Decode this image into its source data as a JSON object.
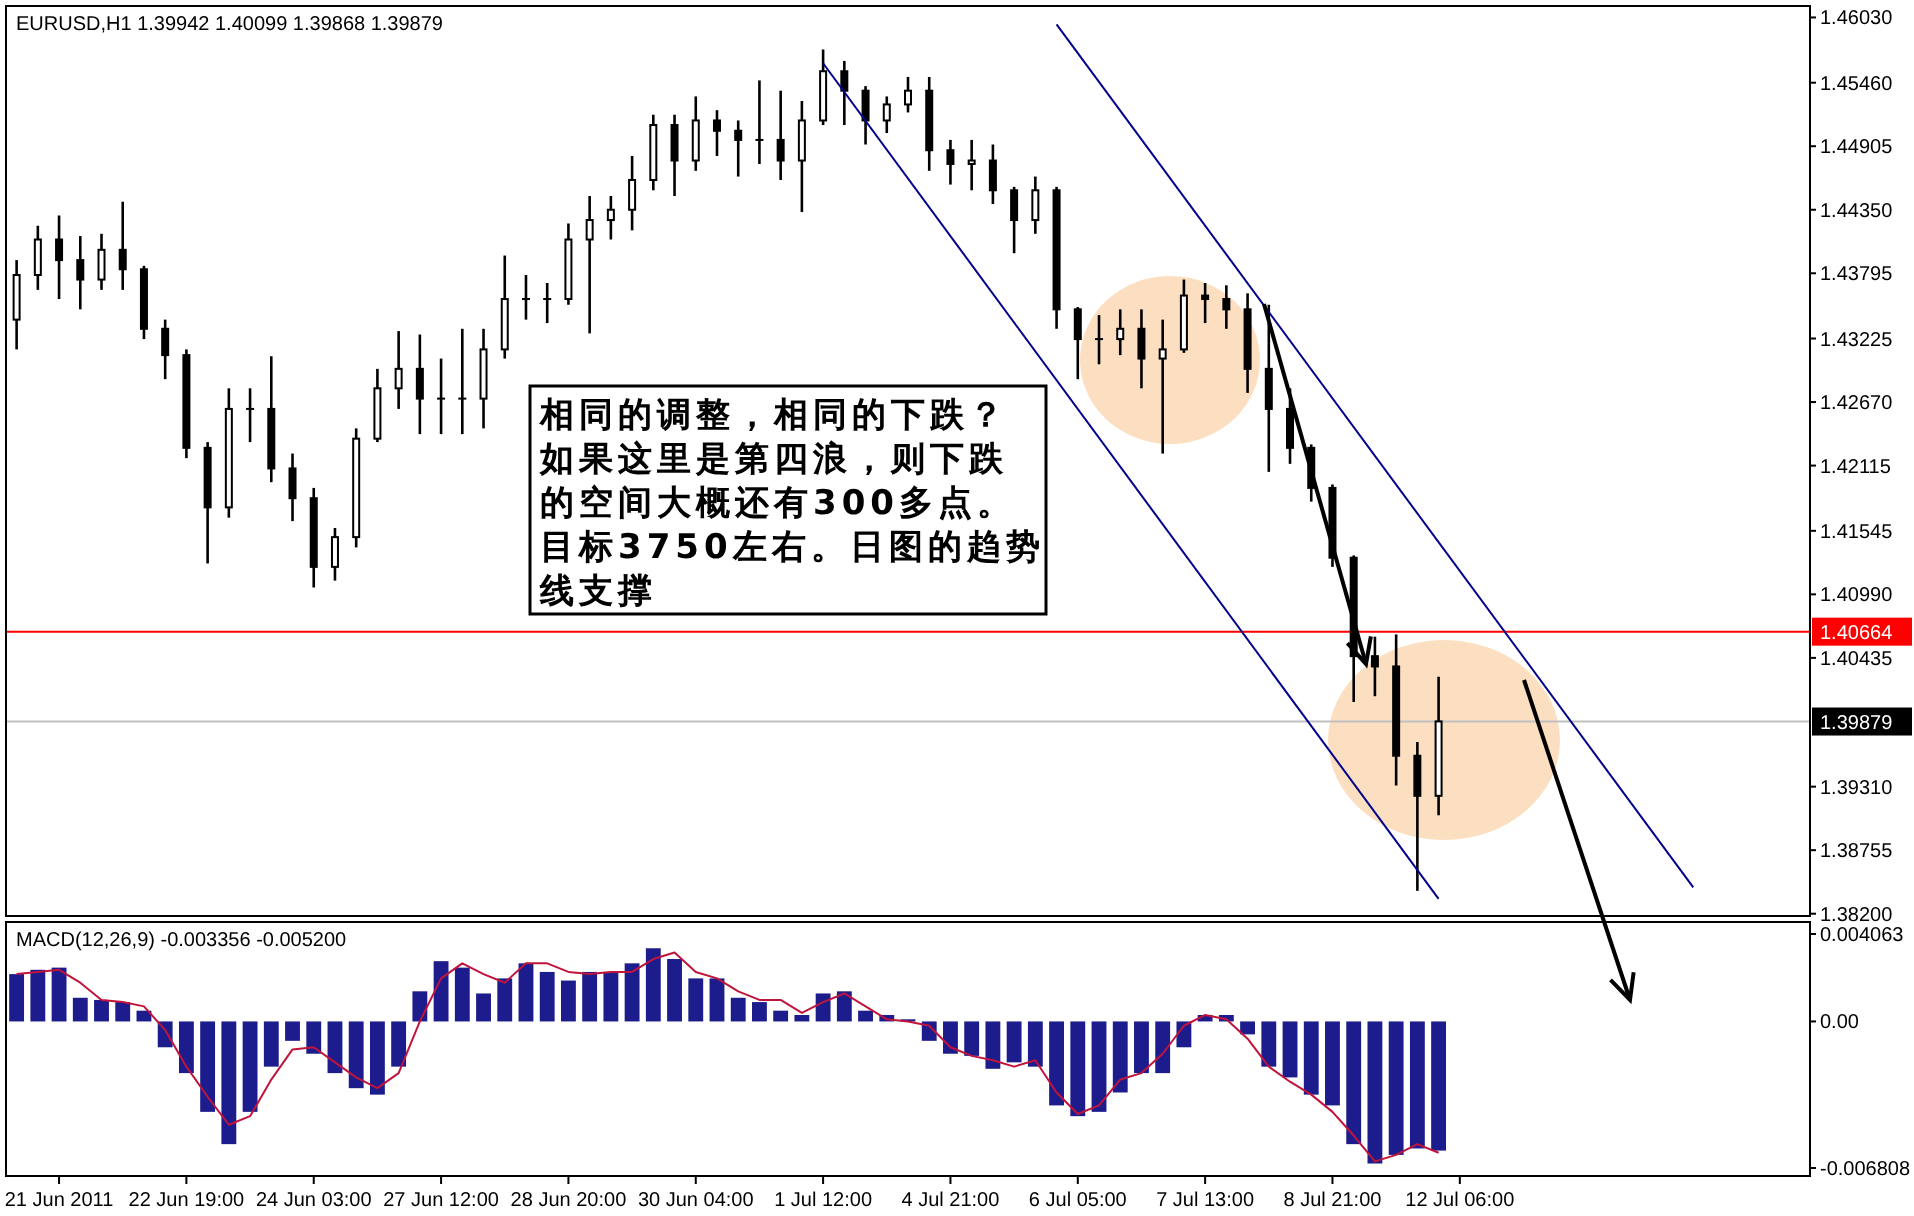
{
  "chart_data": [
    {
      "type": "candlestick",
      "title": "EURUSD,H1  1.39942 1.40099 1.39868 1.39879",
      "color": "#000000",
      "tick_labels": "y",
      "categories": [
        null,
        null,
        null,
        null,
        null,
        null,
        null,
        null,
        null,
        null,
        null,
        null,
        null,
        null,
        null,
        null,
        null,
        null,
        null,
        null,
        null,
        null,
        null,
        null,
        null,
        null,
        null,
        null,
        null,
        null,
        null,
        null,
        null,
        null,
        null,
        null,
        null,
        null,
        null,
        null,
        null,
        null,
        null,
        null,
        null,
        null,
        null,
        null,
        null,
        null,
        null,
        null,
        null,
        null,
        null,
        null,
        null,
        null,
        null,
        null,
        null,
        null,
        null,
        null,
        null,
        null,
        null,
        null,
        null,
        null,
        null,
        null,
        null,
        null,
        null,
        null,
        null,
        null,
        null,
        null,
        null,
        null,
        null,
        null,
        null
      ],
      "ohlc": [
        [
          1.4339,
          1.4391,
          1.4313,
          1.4378
        ],
        [
          1.4378,
          1.4421,
          1.4365,
          1.4409
        ],
        [
          1.4409,
          1.443,
          1.4357,
          1.4391
        ],
        [
          1.4391,
          1.4412,
          1.4348,
          1.4374
        ],
        [
          1.4374,
          1.4414,
          1.4365,
          1.44
        ],
        [
          1.44,
          1.4442,
          1.4365,
          1.4383
        ],
        [
          1.4383,
          1.4386,
          1.4322,
          1.4331
        ],
        [
          1.4331,
          1.4339,
          1.4287,
          1.4308
        ],
        [
          1.4308,
          1.4313,
          1.4218,
          1.4227
        ],
        [
          1.4227,
          1.4232,
          1.4126,
          1.4175
        ],
        [
          1.4175,
          1.4279,
          1.4166,
          1.4261
        ],
        [
          1.4261,
          1.4279,
          1.4232,
          1.4261
        ],
        [
          1.4261,
          1.4307,
          1.4197,
          1.4209
        ],
        [
          1.4209,
          1.4222,
          1.4163,
          1.4183
        ],
        [
          1.4183,
          1.4192,
          1.4105,
          1.4123
        ],
        [
          1.4123,
          1.4157,
          1.4111,
          1.4149
        ],
        [
          1.4149,
          1.4244,
          1.414,
          1.4235
        ],
        [
          1.4235,
          1.4296,
          1.4232,
          1.4279
        ],
        [
          1.4279,
          1.4329,
          1.4261,
          1.4296
        ],
        [
          1.4296,
          1.4326,
          1.4239,
          1.427
        ],
        [
          1.427,
          1.4305,
          1.4239,
          1.427
        ],
        [
          1.427,
          1.4331,
          1.4239,
          1.427
        ],
        [
          1.427,
          1.4331,
          1.4244,
          1.4313
        ],
        [
          1.4313,
          1.4395,
          1.4305,
          1.4357
        ],
        [
          1.4357,
          1.4378,
          1.4339,
          1.4357
        ],
        [
          1.4357,
          1.4371,
          1.4336,
          1.4357
        ],
        [
          1.4357,
          1.4423,
          1.4352,
          1.4409
        ],
        [
          1.4409,
          1.4447,
          1.4327,
          1.4426
        ],
        [
          1.4426,
          1.4447,
          1.4409,
          1.4435
        ],
        [
          1.4435,
          1.4482,
          1.4417,
          1.4461
        ],
        [
          1.4461,
          1.4518,
          1.4452,
          1.4509
        ],
        [
          1.4509,
          1.4518,
          1.4447,
          1.4478
        ],
        [
          1.4478,
          1.4534,
          1.4469,
          1.4513
        ],
        [
          1.4513,
          1.4522,
          1.4482,
          1.4504
        ],
        [
          1.4504,
          1.4513,
          1.4464,
          1.4496
        ],
        [
          1.4496,
          1.4548,
          1.4475,
          1.4496
        ],
        [
          1.4496,
          1.4539,
          1.4461,
          1.4478
        ],
        [
          1.4478,
          1.453,
          1.4433,
          1.4513
        ],
        [
          1.4513,
          1.4575,
          1.4509,
          1.4556
        ],
        [
          1.4556,
          1.4565,
          1.4509,
          1.4539
        ],
        [
          1.4539,
          1.4543,
          1.4492,
          1.4513
        ],
        [
          1.4513,
          1.4534,
          1.4502,
          1.4527
        ],
        [
          1.4527,
          1.4551,
          1.452,
          1.4539
        ],
        [
          1.4539,
          1.4551,
          1.4469,
          1.4487
        ],
        [
          1.4487,
          1.4496,
          1.4457,
          1.4475
        ],
        [
          1.4475,
          1.4496,
          1.4452,
          1.4478
        ],
        [
          1.4478,
          1.4492,
          1.444,
          1.4452
        ],
        [
          1.4452,
          1.4455,
          1.4397,
          1.4426
        ],
        [
          1.4426,
          1.4464,
          1.4414,
          1.4452
        ],
        [
          1.4452,
          1.4455,
          1.4331,
          1.4348
        ],
        [
          1.4348,
          1.435,
          1.4287,
          1.4322
        ],
        [
          1.4322,
          1.4343,
          1.43,
          1.4322
        ],
        [
          1.4322,
          1.4348,
          1.4308,
          1.4331
        ],
        [
          1.4331,
          1.4348,
          1.4279,
          1.4305
        ],
        [
          1.4305,
          1.4339,
          1.4222,
          1.4313
        ],
        [
          1.4313,
          1.4374,
          1.431,
          1.436
        ],
        [
          1.436,
          1.4371,
          1.4336,
          1.4357
        ],
        [
          1.4357,
          1.4369,
          1.4331,
          1.4348
        ],
        [
          1.4348,
          1.4362,
          1.4275,
          1.4296
        ],
        [
          1.4296,
          1.4352,
          1.4206,
          1.4261
        ],
        [
          1.4261,
          1.4279,
          1.4213,
          1.4227
        ],
        [
          1.4227,
          1.423,
          1.418,
          1.4192
        ],
        [
          1.4192,
          1.4195,
          1.4123,
          1.4131
        ],
        [
          1.4131,
          1.4133,
          1.4005,
          1.4045
        ],
        [
          1.4045,
          1.4062,
          1.401,
          1.4036
        ],
        [
          1.4036,
          1.4064,
          1.3932,
          1.3958
        ],
        [
          1.3958,
          1.397,
          1.384,
          1.3923
        ],
        [
          1.3923,
          1.4027,
          1.3906,
          1.3988
        ],
        null,
        null,
        null,
        null,
        null,
        null,
        null,
        null,
        null,
        null,
        null,
        null,
        null,
        null,
        null,
        null,
        null
      ],
      "series": [
        {
          "type": "line",
          "color": "#00008b",
          "values": [
            null,
            null,
            null,
            null,
            null,
            null,
            null,
            null,
            null,
            null,
            null,
            null,
            null,
            null,
            null,
            null,
            null,
            null,
            null,
            null,
            null,
            null,
            null,
            null,
            null,
            null,
            null,
            null,
            null,
            null,
            null,
            null,
            null,
            null,
            null,
            null,
            null,
            null,
            1.4563,
            null,
            null,
            null,
            null,
            null,
            null,
            null,
            null,
            null,
            null,
            null,
            null,
            null,
            null,
            null,
            null,
            null,
            null,
            null,
            null,
            null,
            null,
            null,
            null,
            null,
            null,
            null,
            null,
            1.3833,
            null,
            null,
            null,
            null,
            null,
            null,
            null,
            null,
            null,
            null,
            null,
            null,
            null,
            null,
            null,
            null,
            null
          ]
        },
        {
          "type": "line",
          "color": "#00008b",
          "values": [
            null,
            null,
            null,
            null,
            null,
            null,
            null,
            null,
            null,
            null,
            null,
            null,
            null,
            null,
            null,
            null,
            null,
            null,
            null,
            null,
            null,
            null,
            null,
            null,
            null,
            null,
            null,
            null,
            null,
            null,
            null,
            null,
            null,
            null,
            null,
            null,
            null,
            null,
            null,
            null,
            null,
            null,
            null,
            null,
            null,
            null,
            null,
            null,
            null,
            1.4597,
            null,
            null,
            null,
            null,
            null,
            null,
            null,
            null,
            null,
            null,
            null,
            null,
            null,
            null,
            null,
            null,
            null,
            null,
            null,
            null,
            null,
            null,
            null,
            null,
            null,
            null,
            null,
            null,
            null,
            1.3843,
            null,
            null,
            null,
            null,
            null
          ]
        }
      ],
      "ylim": [
        1.3818,
        1.4613
      ],
      "yticks": [
        {
          "value": 1.4603,
          "label": "1.46030"
        },
        {
          "value": 1.4546,
          "label": "1.45460"
        },
        {
          "value": 1.44905,
          "label": "1.44905"
        },
        {
          "value": 1.4435,
          "label": "1.44350"
        },
        {
          "value": 1.43795,
          "label": "1.43795"
        },
        {
          "value": 1.43225,
          "label": "1.43225"
        },
        {
          "value": 1.4267,
          "label": "1.42670"
        },
        {
          "value": 1.42115,
          "label": "1.42115"
        },
        {
          "value": 1.41545,
          "label": "1.41545"
        },
        {
          "value": 1.4099,
          "label": "1.40990"
        },
        {
          "value": 1.40435,
          "label": "1.40435"
        },
        {
          "value": 1.3931,
          "label": "1.39310"
        },
        {
          "value": 1.38755,
          "label": "1.38755"
        },
        {
          "value": 1.382,
          "label": "1.38200"
        }
      ],
      "ref_lines": [
        {
          "axis": "y",
          "value": 1.40664,
          "label": "1.40664",
          "color": "#ff0000"
        },
        {
          "axis": "y",
          "value": 1.39879,
          "label": "1.39879",
          "color": "#c0c0c0"
        }
      ],
      "annotations": [
        "相同的调整，相同的下跌？如果这里是第四浪，则下跌的空间大概还有300多点。目标3750左右。日图的趋势线支撑"
      ]
    },
    {
      "type": "bar",
      "title": "MACD(12,26,9) -0.003356 -0.005200",
      "categories": [
        null,
        null,
        "21 Jun 2011",
        null,
        null,
        null,
        null,
        null,
        "22 Jun 19:00",
        null,
        null,
        null,
        null,
        null,
        "24 Jun 03:00",
        null,
        null,
        null,
        null,
        null,
        "27 Jun 12:00",
        null,
        null,
        null,
        null,
        null,
        "28 Jun 20:00",
        null,
        null,
        null,
        null,
        null,
        "30 Jun 04:00",
        null,
        null,
        null,
        null,
        null,
        "1 Jul 12:00",
        null,
        null,
        null,
        null,
        null,
        "4 Jul 21:00",
        null,
        null,
        null,
        null,
        null,
        "6 Jul 05:00",
        null,
        null,
        null,
        null,
        null,
        "7 Jul 13:00",
        null,
        null,
        null,
        null,
        null,
        "8 Jul 21:00",
        null,
        null,
        null,
        null,
        null,
        "12 Jul 06:00",
        null,
        null,
        null,
        null,
        null,
        null,
        null,
        null,
        null,
        null,
        null,
        null,
        null,
        null,
        null,
        null
      ],
      "series": [
        {
          "type": "bar",
          "color": "#1c1c8c",
          "values": [
            0.0022,
            0.0024,
            0.0025,
            0.0011,
            0.001,
            0.0009,
            0.0005,
            -0.0012,
            -0.0024,
            -0.0042,
            -0.0057,
            -0.0042,
            -0.0021,
            -0.0009,
            -0.0015,
            -0.0024,
            -0.0031,
            -0.0034,
            -0.0021,
            0.0014,
            0.0028,
            0.0025,
            0.0013,
            0.002,
            0.0027,
            0.0023,
            0.0019,
            0.0023,
            0.0023,
            0.0027,
            0.0034,
            0.0029,
            0.002,
            0.002,
            0.0011,
            0.0009,
            0.0005,
            0.0003,
            0.0013,
            0.0014,
            0.0005,
            0.0003,
            0.0001,
            -0.0009,
            -0.0015,
            -0.0016,
            -0.0022,
            -0.0019,
            -0.0021,
            -0.0039,
            -0.0044,
            -0.0042,
            -0.0033,
            -0.0024,
            -0.0024,
            -0.0012,
            0.0003,
            0.0003,
            -0.0006,
            -0.0021,
            -0.0026,
            -0.0034,
            -0.0039,
            -0.0057,
            -0.0066,
            -0.0062,
            -0.0059,
            -0.006,
            null,
            null,
            null,
            null,
            null,
            null,
            null,
            null,
            null,
            null,
            null,
            null,
            null,
            null,
            null,
            null,
            null
          ]
        },
        {
          "type": "line",
          "color": "#c0143c",
          "values": [
            0.0022,
            0.0023,
            0.0024,
            0.0018,
            0.001,
            0.0009,
            0.0007,
            -0.0004,
            -0.0021,
            -0.0035,
            -0.0048,
            -0.0044,
            -0.0027,
            -0.0013,
            -0.0012,
            -0.0019,
            -0.0026,
            -0.0031,
            -0.0024,
            0,
            0.002,
            0.0027,
            0.0022,
            0.0018,
            0.0027,
            0.0027,
            0.0023,
            0.0022,
            0.0023,
            0.0023,
            0.0029,
            0.0032,
            0.0023,
            0.002,
            0.0014,
            0.001,
            0.001,
            0.0004,
            0.0009,
            0.0013,
            0.0007,
            0.0001,
            0,
            -0.0002,
            -0.0012,
            -0.0016,
            -0.0018,
            -0.0021,
            -0.0018,
            -0.0033,
            -0.0043,
            -0.0039,
            -0.0027,
            -0.0024,
            -0.0015,
            -0.0002,
            0.0003,
            0.0001,
            -0.0008,
            -0.0021,
            -0.0028,
            -0.0034,
            -0.0042,
            -0.0053,
            -0.0065,
            -0.0062,
            -0.0057,
            -0.0061,
            null,
            null,
            null,
            null,
            null,
            null,
            null,
            null,
            null,
            null,
            null,
            null,
            null,
            null,
            null,
            null,
            null
          ]
        }
      ],
      "ylim": [
        -0.00718,
        0.00462
      ],
      "yticks": [
        {
          "value": 0.004063,
          "label": "0.004063"
        },
        {
          "value": 0,
          "label": "0.00"
        },
        {
          "value": -0.006808,
          "label": "-0.006808"
        }
      ]
    }
  ]
}
